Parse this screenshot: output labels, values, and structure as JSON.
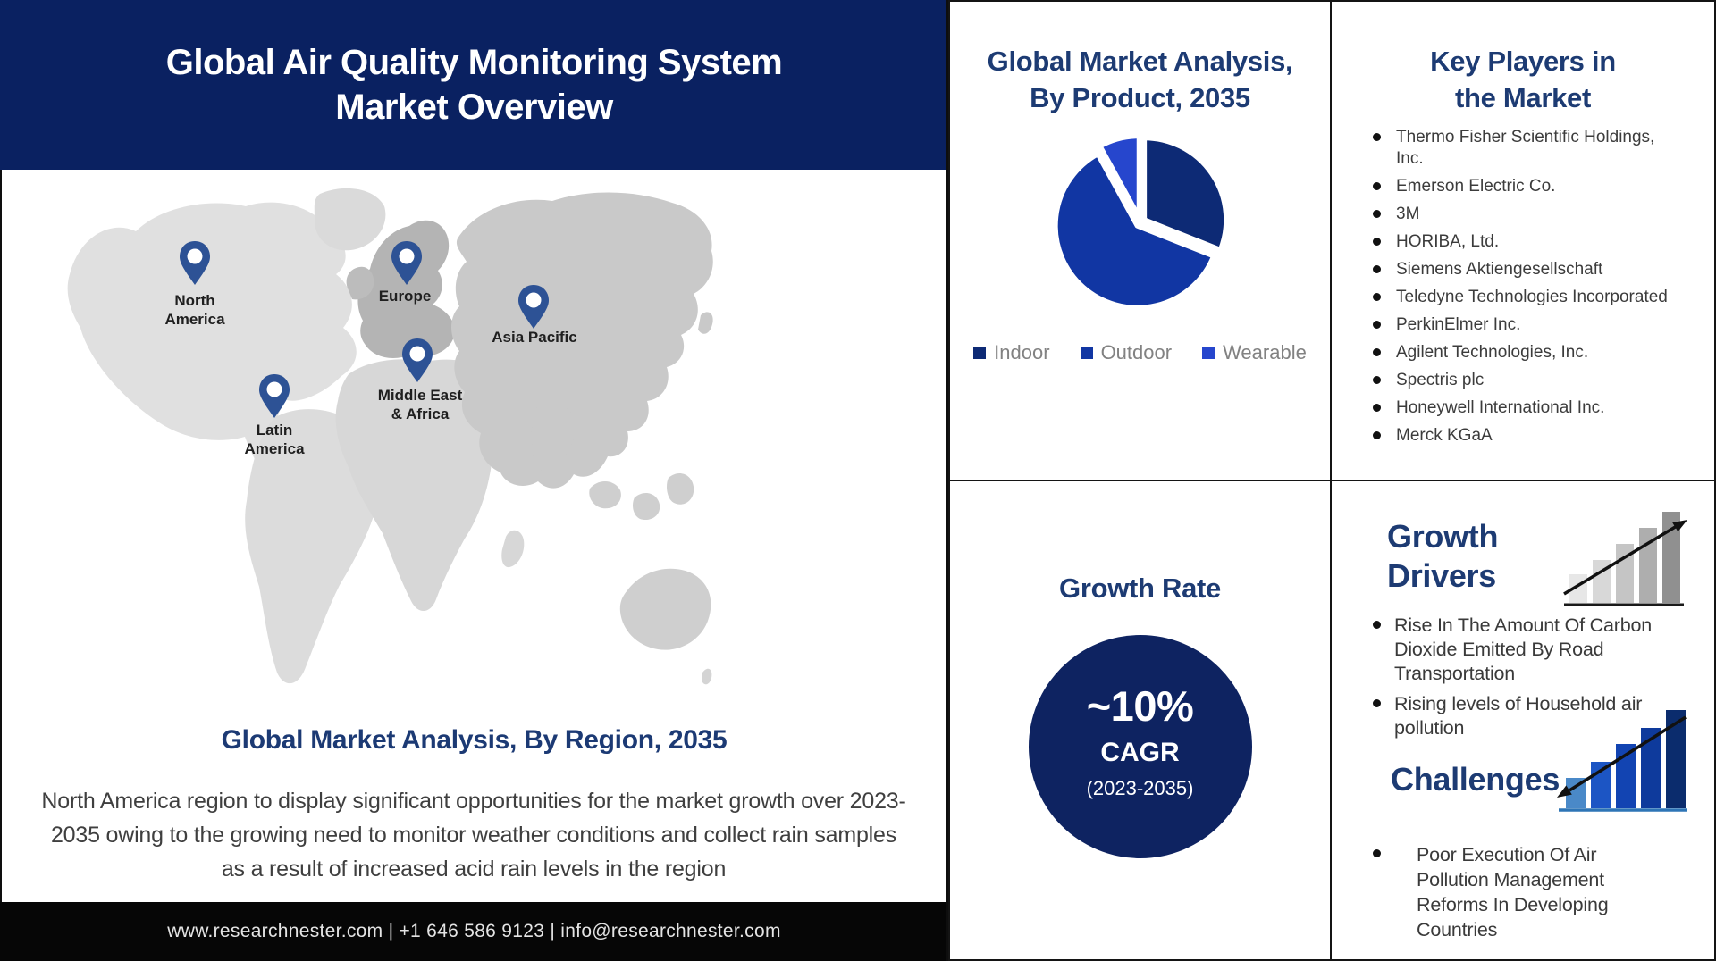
{
  "colors": {
    "header_bg": "#0a2161",
    "panel_title": "#1d3b73",
    "growth_circle_bg": "#0e2361",
    "map_pin": "#2d5295",
    "footer_bg": "#060606",
    "legend_text": "#828282"
  },
  "header": {
    "title": "Global Air Quality Monitoring System\nMarket Overview"
  },
  "map_section": {
    "regions": [
      {
        "label": "North\nAmerica"
      },
      {
        "label": "Europe"
      },
      {
        "label": "Asia Pacific"
      },
      {
        "label": "Middle East\n& Africa"
      },
      {
        "label": "Latin\nAmerica"
      }
    ],
    "title": "Global Market Analysis, By Region, 2035",
    "description": "North America region to display significant opportunities for the market growth over 2023-2035 owing to the growing need to monitor weather conditions and collect rain samples as a result of increased acid rain levels in the region"
  },
  "footer": {
    "text": "www.researchnester.com | +1 646 586 9123 | info@researchnester.com"
  },
  "product_panel": {
    "title": "Global Market Analysis,\nBy Product, 2035"
  },
  "chart_data": {
    "type": "pie",
    "title": "Global Market Analysis, By Product, 2035",
    "labels": [
      "Indoor",
      "Outdoor",
      "Wearable"
    ],
    "values": [
      31,
      61,
      8
    ],
    "values_note": "percent shares estimated from slice angles; no numeric labels shown in figure",
    "colors": [
      "#0d2a75",
      "#1136a3",
      "#2646cd"
    ],
    "legend_position": "bottom",
    "start_angle_deg": 0,
    "clockwise": true
  },
  "players_panel": {
    "title": "Key Players in\nthe Market",
    "items": [
      "Thermo Fisher Scientific Holdings, Inc.",
      "Emerson Electric Co.",
      "3M",
      "HORIBA, Ltd.",
      "Siemens Aktiengesellschaft",
      "Teledyne Technologies Incorporated",
      "PerkinElmer Inc.",
      "Agilent Technologies, Inc.",
      "Spectris plc",
      "Honeywell International Inc.",
      "Merck KGaA"
    ]
  },
  "growth_panel": {
    "title": "Growth Rate",
    "value": "~10%",
    "metric": "CAGR",
    "period": "(2023-2035)"
  },
  "drivers_panel": {
    "title": "Growth\nDrivers",
    "icon": "ascending-bar-chart-up-arrow-icon",
    "bullets": [
      "Rise In The Amount Of Carbon Dioxide Emitted By Road Transportation",
      "Rising levels of Household air pollution"
    ]
  },
  "challenges_panel": {
    "title": "Challenges",
    "icon": "ascending-bar-chart-down-arrow-icon",
    "bullets": [
      "Poor Execution Of Air Pollution Management Reforms In Developing Countries"
    ]
  }
}
